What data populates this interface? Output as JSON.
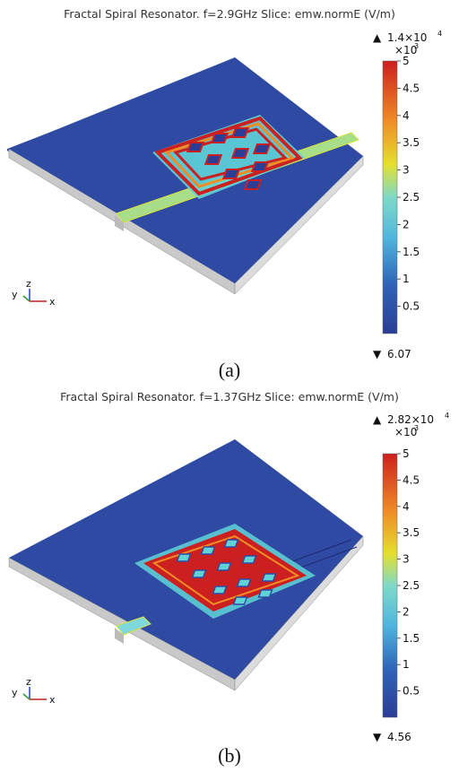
{
  "panels": [
    {
      "id": "a",
      "title": "Fractal Spiral Resonator.  f=2.9GHz Slice: emw.normE (V/m)",
      "caption": "(a)",
      "colorbar": {
        "max_label": "1.4×10",
        "max_exp": "4",
        "scale_label": "×10",
        "scale_exp": "3",
        "min_label": "6.07",
        "ticks": [
          "5",
          "4.5",
          "4",
          "3.5",
          "3",
          "2.5",
          "2",
          "1.5",
          "1",
          "0.5"
        ]
      },
      "axes": {
        "y": "y",
        "z": "z",
        "x": "x"
      }
    },
    {
      "id": "b",
      "title": "Fractal Spiral Resonator.  f=1.37GHz Slice: emw.normE (V/m)",
      "caption": "(b)",
      "colorbar": {
        "max_label": "2.82×10",
        "max_exp": "4",
        "scale_label": "×10",
        "scale_exp": "3",
        "min_label": "4.56",
        "ticks": [
          "5",
          "4.5",
          "4",
          "3.5",
          "3",
          "2.5",
          "2",
          "1.5",
          "1",
          "0.5"
        ]
      },
      "axes": {
        "y": "y",
        "z": "z",
        "x": "x"
      }
    }
  ],
  "colors": {
    "substrate_top": "#2e4aa3",
    "substrate_side": "#c8c8c8",
    "field_low": "#2c3d96",
    "field_mid": "#5fd3d8",
    "field_high": "#cc1f1f",
    "feed_a": "#a8dd8a",
    "feed_b": "#7fd9dc"
  }
}
